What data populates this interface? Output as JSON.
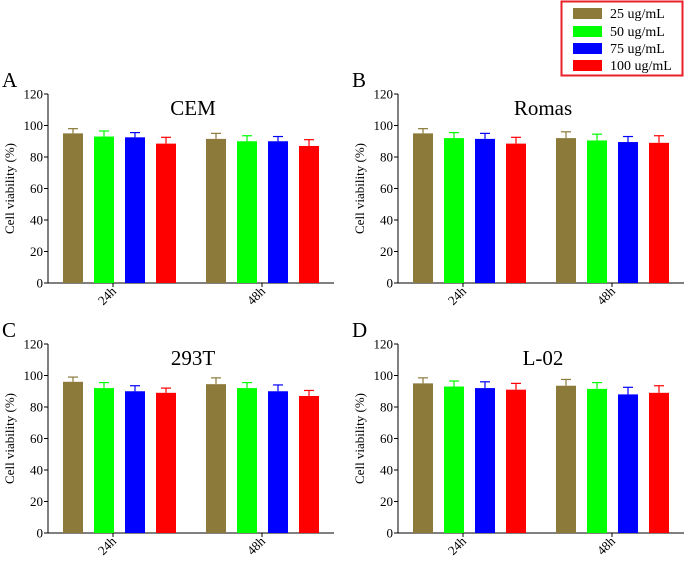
{
  "legend": {
    "items": [
      {
        "label": "25 ug/mL",
        "color": "#8B7A3A"
      },
      {
        "label": "50 ug/mL",
        "color": "#00FF00"
      },
      {
        "label": "75 ug/mL",
        "color": "#0000FF"
      },
      {
        "label": "100 ug/mL",
        "color": "#FF0000"
      }
    ],
    "border_color": "#E8202A",
    "placement": "top-right"
  },
  "chart_data": [
    {
      "panel": "A",
      "type": "bar",
      "title": "CEM",
      "ylabel": "Cell viability (%)",
      "xlabel": "",
      "ylim": [
        0,
        120
      ],
      "yticks": [
        0,
        20,
        40,
        60,
        80,
        100,
        120
      ],
      "categories": [
        "24h",
        "48h"
      ],
      "series": [
        {
          "name": "25 ug/mL",
          "values": [
            95,
            91.5
          ],
          "errors": [
            3,
            3.5
          ]
        },
        {
          "name": "50 ug/mL",
          "values": [
            93,
            90
          ],
          "errors": [
            3.5,
            3.5
          ]
        },
        {
          "name": "75 ug/mL",
          "values": [
            92.5,
            90
          ],
          "errors": [
            3,
            3
          ]
        },
        {
          "name": "100 ug/mL",
          "values": [
            88.5,
            87
          ],
          "errors": [
            4,
            4
          ]
        }
      ]
    },
    {
      "panel": "B",
      "type": "bar",
      "title": "Romas",
      "ylabel": "Cell viability (%)",
      "xlabel": "",
      "ylim": [
        0,
        120
      ],
      "yticks": [
        0,
        20,
        40,
        60,
        80,
        100,
        120
      ],
      "categories": [
        "24h",
        "48h"
      ],
      "series": [
        {
          "name": "25 ug/mL",
          "values": [
            95,
            92
          ],
          "errors": [
            3,
            4
          ]
        },
        {
          "name": "50 ug/mL",
          "values": [
            92,
            90.5
          ],
          "errors": [
            3.5,
            4
          ]
        },
        {
          "name": "75 ug/mL",
          "values": [
            91.5,
            89.5
          ],
          "errors": [
            3.5,
            3.5
          ]
        },
        {
          "name": "100 ug/mL",
          "values": [
            88.5,
            89
          ],
          "errors": [
            4,
            4.5
          ]
        }
      ]
    },
    {
      "panel": "C",
      "type": "bar",
      "title": "293T",
      "ylabel": "Cell viability (%)",
      "xlabel": "",
      "ylim": [
        0,
        120
      ],
      "yticks": [
        0,
        20,
        40,
        60,
        80,
        100,
        120
      ],
      "categories": [
        "24h",
        "48h"
      ],
      "series": [
        {
          "name": "25 ug/mL",
          "values": [
            96,
            94.5
          ],
          "errors": [
            3,
            4
          ]
        },
        {
          "name": "50 ug/mL",
          "values": [
            92,
            92
          ],
          "errors": [
            3.5,
            3.5
          ]
        },
        {
          "name": "75 ug/mL",
          "values": [
            90,
            90
          ],
          "errors": [
            3.5,
            4
          ]
        },
        {
          "name": "100 ug/mL",
          "values": [
            89,
            87
          ],
          "errors": [
            3,
            3.5
          ]
        }
      ]
    },
    {
      "panel": "D",
      "type": "bar",
      "title": "L-02",
      "ylabel": "Cell viability (%)",
      "xlabel": "",
      "ylim": [
        0,
        120
      ],
      "yticks": [
        0,
        20,
        40,
        60,
        80,
        100,
        120
      ],
      "categories": [
        "24h",
        "48h"
      ],
      "series": [
        {
          "name": "25 ug/mL",
          "values": [
            95,
            93.5
          ],
          "errors": [
            3.5,
            4
          ]
        },
        {
          "name": "50 ug/mL",
          "values": [
            93,
            91.5
          ],
          "errors": [
            3.5,
            4
          ]
        },
        {
          "name": "75 ug/mL",
          "values": [
            92,
            88
          ],
          "errors": [
            4,
            4.5
          ]
        },
        {
          "name": "100 ug/mL",
          "values": [
            91,
            89
          ],
          "errors": [
            4,
            4.5
          ]
        }
      ]
    }
  ]
}
